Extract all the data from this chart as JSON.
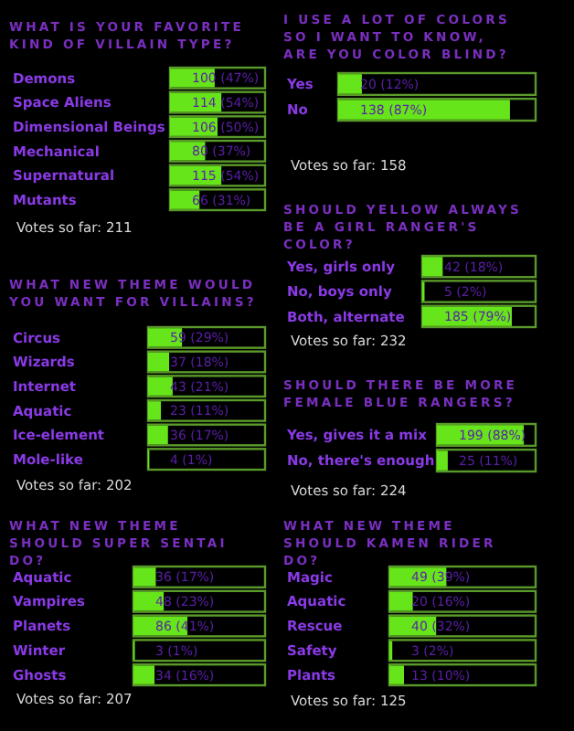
{
  "chart_data": [
    {
      "type": "bar",
      "orientation": "horizontal",
      "title": "WHAT IS YOUR FAVORITE KIND OF VILLAIN TYPE?",
      "categories": [
        "Demons",
        "Space Aliens",
        "Dimensional Beings",
        "Mechanical",
        "Supernatural",
        "Mutants"
      ],
      "values": [
        47,
        54,
        50,
        37,
        54,
        31
      ],
      "value_labels": [
        "100 (47%)",
        "114 (54%)",
        "106 (50%)",
        "80 (37%)",
        "115 (54%)",
        "66 (31%)"
      ],
      "color": "#66e61a",
      "xlim": [
        0,
        100
      ],
      "tick_labels": false,
      "annotations": [
        "Votes so far: 211"
      ]
    },
    {
      "type": "bar",
      "orientation": "horizontal",
      "title": "WHAT NEW THEME WOULD YOU WANT FOR VILLAINS?",
      "categories": [
        "Circus",
        "Wizards",
        "Internet",
        "Aquatic",
        "Ice-element",
        "Mole-like"
      ],
      "values": [
        29,
        18,
        21,
        11,
        17,
        1
      ],
      "value_labels": [
        "59 (29%)",
        "37 (18%)",
        "43 (21%)",
        "23 (11%)",
        "36 (17%)",
        "4 (1%)"
      ],
      "color": "#66e61a",
      "xlim": [
        0,
        100
      ],
      "tick_labels": false,
      "annotations": [
        "Votes so far: 202"
      ]
    },
    {
      "type": "bar",
      "orientation": "horizontal",
      "title": "WHAT NEW THEME SHOULD SUPER SENTAI DO?",
      "categories": [
        "Aquatic",
        "Vampires",
        "Planets",
        "Winter",
        "Ghosts"
      ],
      "values": [
        17,
        23,
        41,
        1,
        16
      ],
      "value_labels": [
        "36 (17%)",
        "48 (23%)",
        "86 (41%)",
        "3 (1%)",
        "34 (16%)"
      ],
      "color": "#66e61a",
      "xlim": [
        0,
        100
      ],
      "tick_labels": false,
      "annotations": [
        "Votes so far: 207"
      ]
    },
    {
      "type": "bar",
      "orientation": "horizontal",
      "title": "I USE A LOT OF COLORS SO I WANT TO KNOW, ARE YOU COLOR BLIND?",
      "categories": [
        "Yes",
        "No"
      ],
      "values": [
        12,
        87
      ],
      "value_labels": [
        "20 (12%)",
        "138 (87%)"
      ],
      "color": "#66e61a",
      "xlim": [
        0,
        100
      ],
      "tick_labels": false,
      "annotations": [
        "Votes so far: 158"
      ]
    },
    {
      "type": "bar",
      "orientation": "horizontal",
      "title": "SHOULD YELLOW ALWAYS BE A GIRL RANGER'S COLOR?",
      "categories": [
        "Yes, girls only",
        "No, boys only",
        "Both, alternate"
      ],
      "values": [
        18,
        2,
        79
      ],
      "value_labels": [
        "42 (18%)",
        "5 (2%)",
        "185 (79%)"
      ],
      "color": "#66e61a",
      "xlim": [
        0,
        100
      ],
      "tick_labels": false,
      "annotations": [
        "Votes so far: 232"
      ]
    },
    {
      "type": "bar",
      "orientation": "horizontal",
      "title": "SHOULD THERE BE MORE FEMALE BLUE RANGERS?",
      "categories": [
        "Yes, gives it a mix",
        "No, there's enough"
      ],
      "values": [
        88,
        11
      ],
      "value_labels": [
        "199 (88%)",
        "25 (11%)"
      ],
      "color": "#66e61a",
      "xlim": [
        0,
        100
      ],
      "tick_labels": false,
      "annotations": [
        "Votes so far: 224"
      ]
    },
    {
      "type": "bar",
      "orientation": "horizontal",
      "title": "WHAT NEW THEME SHOULD KAMEN RIDER DO?",
      "categories": [
        "Magic",
        "Aquatic",
        "Rescue",
        "Safety",
        "Plants"
      ],
      "values": [
        39,
        16,
        32,
        2,
        10
      ],
      "value_labels": [
        "49 (39%)",
        "20 (16%)",
        "40 (32%)",
        "3 (2%)",
        "13 (10%)"
      ],
      "color": "#66e61a",
      "xlim": [
        0,
        100
      ],
      "tick_labels": false,
      "annotations": [
        "Votes so far: 125"
      ]
    }
  ]
}
